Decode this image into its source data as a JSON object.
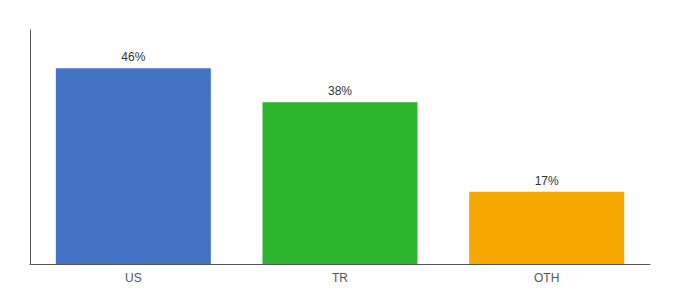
{
  "chart_data": {
    "type": "bar",
    "categories": [
      "US",
      "TR",
      "OTH"
    ],
    "values": [
      46,
      38,
      17
    ],
    "value_labels": [
      "46%",
      "38%",
      "17%"
    ],
    "colors": [
      "#4472c4",
      "#2db52d",
      "#f5a800"
    ],
    "ylim": [
      0,
      55
    ],
    "yticks": [],
    "grid": false,
    "tick_labels": "x"
  }
}
